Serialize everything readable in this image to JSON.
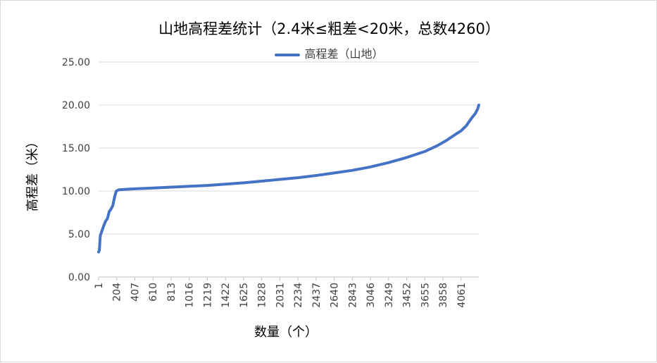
{
  "chart_data": {
    "type": "line",
    "title": "山地高程差统计（2.4米≤粗差<20米，总数4260）",
    "xlabel": "数量（个）",
    "ylabel": "高程差（米）",
    "ylim": [
      0,
      25
    ],
    "y_ticks": [
      "0.00",
      "5.00",
      "10.00",
      "15.00",
      "20.00",
      "25.00"
    ],
    "x_ticks": [
      "1",
      "204",
      "407",
      "610",
      "813",
      "1016",
      "1219",
      "1422",
      "1625",
      "1828",
      "2031",
      "2234",
      "2437",
      "2640",
      "2843",
      "3046",
      "3249",
      "3452",
      "3655",
      "3858",
      "4061"
    ],
    "xlim": [
      1,
      4260
    ],
    "grid": true,
    "legend_position": "top",
    "series": [
      {
        "name": "高程差（山地）",
        "color": "#4472c4",
        "x": [
          1,
          10,
          20,
          40,
          60,
          80,
          100,
          120,
          140,
          160,
          180,
          200,
          230,
          300,
          407,
          610,
          813,
          1016,
          1219,
          1422,
          1625,
          1828,
          2031,
          2234,
          2437,
          2640,
          2843,
          3046,
          3249,
          3452,
          3655,
          3800,
          3900,
          4000,
          4061,
          4120,
          4180,
          4220,
          4245,
          4260
        ],
        "y": [
          2.9,
          3.1,
          4.8,
          5.4,
          6.0,
          6.5,
          6.8,
          7.6,
          7.9,
          8.3,
          9.3,
          10.0,
          10.15,
          10.2,
          10.25,
          10.35,
          10.45,
          10.55,
          10.65,
          10.8,
          10.95,
          11.15,
          11.35,
          11.55,
          11.8,
          12.1,
          12.4,
          12.8,
          13.3,
          13.9,
          14.6,
          15.3,
          15.9,
          16.6,
          17.0,
          17.6,
          18.5,
          19.0,
          19.5,
          20.0
        ]
      }
    ]
  }
}
